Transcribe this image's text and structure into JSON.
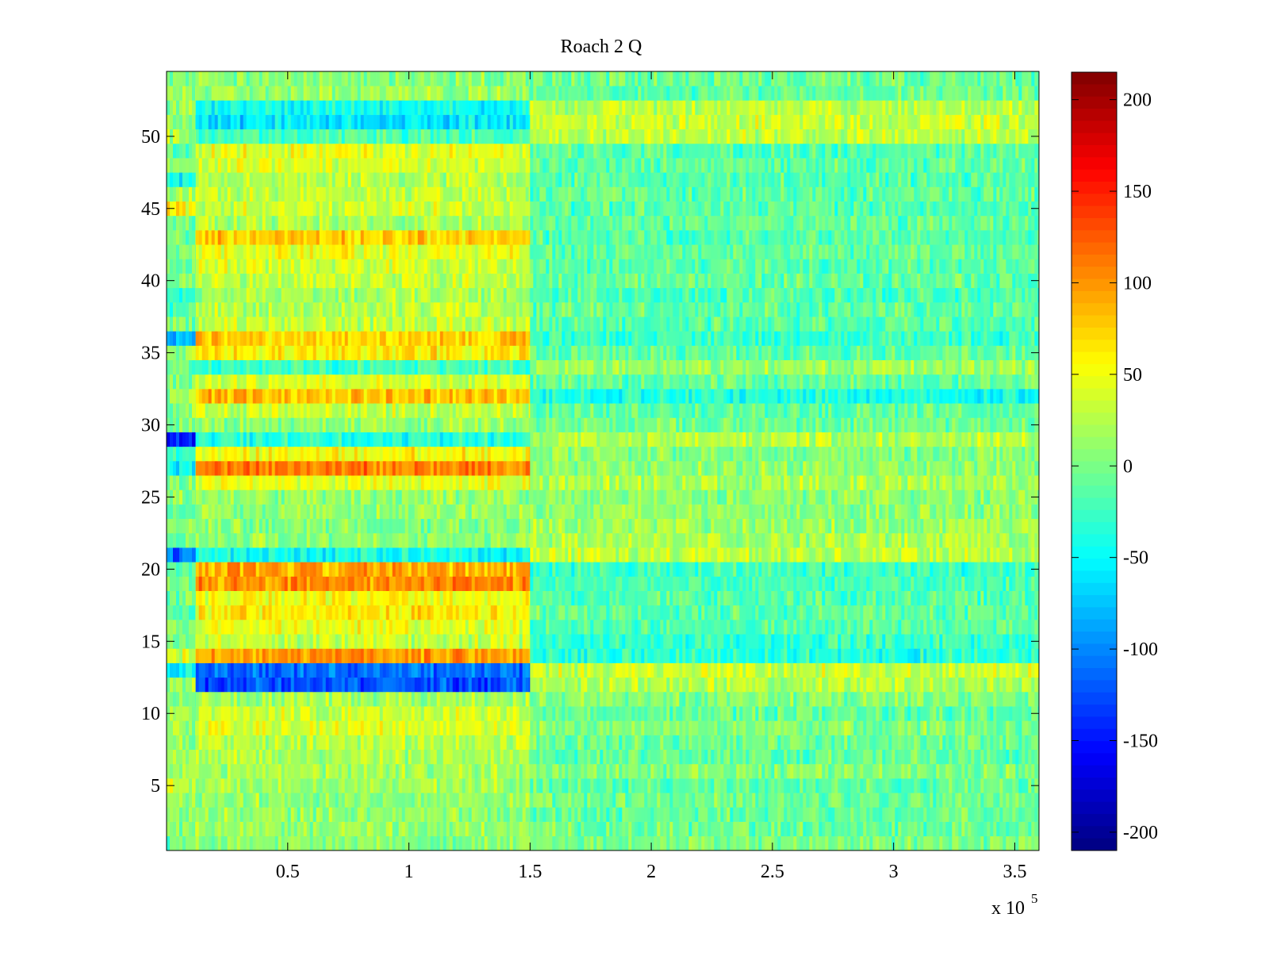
{
  "chart_data": {
    "type": "heatmap",
    "title": "Roach 2 Q",
    "xlabel": "",
    "ylabel": "",
    "xlim": [
      0,
      360000
    ],
    "ylim": [
      0.5,
      54.5
    ],
    "x_ticks": [
      0.5,
      1,
      1.5,
      2,
      2.5,
      3,
      3.5
    ],
    "x_tick_labels": [
      "0.5",
      "1",
      "1.5",
      "2",
      "2.5",
      "3",
      "3.5"
    ],
    "x_exponent_prefix": "x 10",
    "x_exponent_power": "5",
    "y_ticks": [
      5,
      10,
      15,
      20,
      25,
      30,
      35,
      40,
      45,
      50
    ],
    "y_tick_labels": [
      "5",
      "10",
      "15",
      "20",
      "25",
      "30",
      "35",
      "40",
      "45",
      "50"
    ],
    "colorbar": {
      "colormap": "jet",
      "clim": [
        -210,
        215
      ],
      "ticks": [
        200,
        150,
        100,
        50,
        0,
        -50,
        -100,
        -150,
        -200
      ],
      "tick_labels": [
        "200",
        "150",
        "100",
        "50",
        "0",
        "-50",
        "-100",
        "-150",
        "-200"
      ]
    },
    "segments_x": [
      0,
      12000,
      150000,
      360000
    ],
    "noise_amplitude": 22,
    "rows": [
      {
        "row": 1,
        "means": [
          0,
          5,
          0
        ]
      },
      {
        "row": 2,
        "means": [
          5,
          12,
          -5
        ]
      },
      {
        "row": 3,
        "means": [
          8,
          10,
          -10
        ]
      },
      {
        "row": 4,
        "means": [
          10,
          12,
          -5
        ]
      },
      {
        "row": 5,
        "means": [
          35,
          15,
          -10
        ]
      },
      {
        "row": 6,
        "means": [
          20,
          18,
          5
        ]
      },
      {
        "row": 7,
        "means": [
          15,
          20,
          -10
        ]
      },
      {
        "row": 8,
        "means": [
          10,
          25,
          -5
        ]
      },
      {
        "row": 9,
        "means": [
          15,
          40,
          5
        ]
      },
      {
        "row": 10,
        "means": [
          10,
          35,
          -10
        ]
      },
      {
        "row": 11,
        "means": [
          0,
          15,
          5
        ]
      },
      {
        "row": 12,
        "means": [
          15,
          -125,
          25
        ]
      },
      {
        "row": 13,
        "means": [
          -55,
          -110,
          35
        ]
      },
      {
        "row": 14,
        "means": [
          40,
          95,
          -35
        ]
      },
      {
        "row": 15,
        "means": [
          5,
          30,
          -30
        ]
      },
      {
        "row": 16,
        "means": [
          0,
          45,
          -15
        ]
      },
      {
        "row": 17,
        "means": [
          -10,
          60,
          -10
        ]
      },
      {
        "row": 18,
        "means": [
          0,
          50,
          -15
        ]
      },
      {
        "row": 19,
        "means": [
          -5,
          100,
          -20
        ]
      },
      {
        "row": 20,
        "means": [
          -10,
          90,
          -25
        ]
      },
      {
        "row": 21,
        "means": [
          -110,
          -45,
          30
        ]
      },
      {
        "row": 22,
        "means": [
          -5,
          10,
          20
        ]
      },
      {
        "row": 23,
        "means": [
          0,
          5,
          15
        ]
      },
      {
        "row": 24,
        "means": [
          -10,
          15,
          10
        ]
      },
      {
        "row": 25,
        "means": [
          5,
          10,
          5
        ]
      },
      {
        "row": 26,
        "means": [
          0,
          45,
          20
        ]
      },
      {
        "row": 27,
        "means": [
          -55,
          110,
          10
        ]
      },
      {
        "row": 28,
        "means": [
          -25,
          55,
          5
        ]
      },
      {
        "row": 29,
        "means": [
          -140,
          -35,
          25
        ]
      },
      {
        "row": 30,
        "means": [
          5,
          10,
          -5
        ]
      },
      {
        "row": 31,
        "means": [
          10,
          30,
          -10
        ]
      },
      {
        "row": 32,
        "means": [
          20,
          80,
          -40
        ]
      },
      {
        "row": 33,
        "means": [
          0,
          40,
          -10
        ]
      },
      {
        "row": 34,
        "means": [
          -10,
          -25,
          15
        ]
      },
      {
        "row": 35,
        "means": [
          20,
          60,
          -10
        ]
      },
      {
        "row": 36,
        "means": [
          -80,
          75,
          -30
        ]
      },
      {
        "row": 37,
        "means": [
          0,
          30,
          -15
        ]
      },
      {
        "row": 38,
        "means": [
          -15,
          25,
          -10
        ]
      },
      {
        "row": 39,
        "means": [
          -25,
          20,
          -20
        ]
      },
      {
        "row": 40,
        "means": [
          10,
          30,
          -10
        ]
      },
      {
        "row": 41,
        "means": [
          0,
          35,
          -15
        ]
      },
      {
        "row": 42,
        "means": [
          5,
          45,
          -10
        ]
      },
      {
        "row": 43,
        "means": [
          -10,
          75,
          -15
        ]
      },
      {
        "row": 44,
        "means": [
          0,
          20,
          -10
        ]
      },
      {
        "row": 45,
        "means": [
          55,
          35,
          -15
        ]
      },
      {
        "row": 46,
        "means": [
          15,
          30,
          -10
        ]
      },
      {
        "row": 47,
        "means": [
          -45,
          25,
          -15
        ]
      },
      {
        "row": 48,
        "means": [
          10,
          40,
          -10
        ]
      },
      {
        "row": 49,
        "means": [
          -5,
          45,
          -15
        ]
      },
      {
        "row": 50,
        "means": [
          20,
          -20,
          30
        ]
      },
      {
        "row": 51,
        "means": [
          5,
          -60,
          35
        ]
      },
      {
        "row": 52,
        "means": [
          10,
          -45,
          25
        ]
      },
      {
        "row": 53,
        "means": [
          20,
          15,
          -10
        ]
      },
      {
        "row": 54,
        "means": [
          0,
          5,
          -5
        ]
      }
    ]
  }
}
